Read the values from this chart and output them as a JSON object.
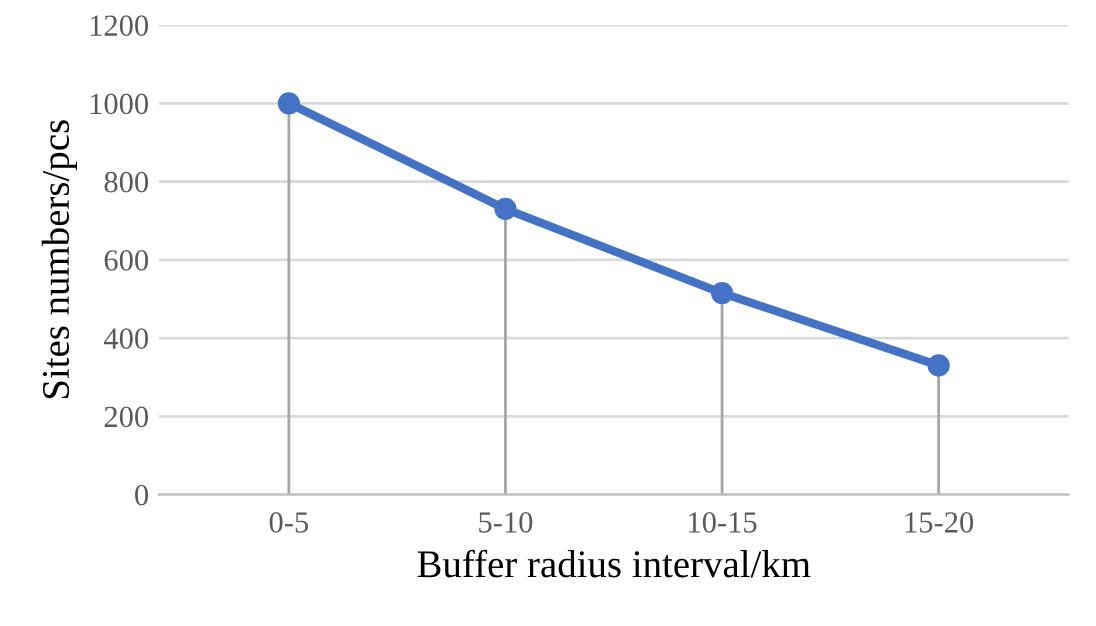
{
  "chart_data": {
    "type": "line",
    "xlabel": "Buffer radius interval/km",
    "ylabel": "Sites numbers/pcs",
    "categories": [
      "0-5",
      "5-10",
      "10-15",
      "15-20"
    ],
    "series": [
      {
        "color": "#4472c4",
        "values": [
          1000,
          730,
          515,
          330
        ],
        "errors": [
          [
            0,
            1000
          ],
          [
            0,
            730
          ],
          [
            0,
            515
          ],
          [
            0,
            330
          ]
        ]
      }
    ],
    "ylim": [
      0,
      1200
    ],
    "yticks": [
      0,
      200,
      400,
      600,
      800,
      1000,
      1200
    ],
    "grid": "y",
    "marker": "circle",
    "line_style": "solid"
  }
}
